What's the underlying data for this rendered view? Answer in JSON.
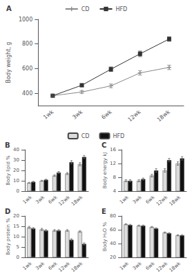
{
  "chart_data": [
    {
      "type": "line",
      "title": "A",
      "ylabel": "Body weight, g",
      "categories": [
        "1wk",
        "3wk",
        "6wk",
        "12wk",
        "18wk"
      ],
      "series": [
        {
          "name": "CD",
          "color": "#888888",
          "marker": "plus",
          "values": [
            380,
            410,
            460,
            565,
            610
          ],
          "errors": [
            8,
            12,
            15,
            18,
            18
          ]
        },
        {
          "name": "HFD",
          "color": "#333333",
          "marker": "square",
          "values": [
            380,
            465,
            595,
            720,
            840
          ],
          "errors": [
            8,
            12,
            18,
            22,
            18
          ]
        }
      ],
      "ylim": [
        300,
        1000
      ],
      "yticks": [
        400,
        600,
        800,
        1000
      ],
      "grid": false,
      "legend": "top"
    },
    {
      "type": "bar",
      "title": "B",
      "ylabel": "Body lipid %",
      "categories": [
        "1wk",
        "3wk",
        "6wk",
        "12wk",
        "18wk"
      ],
      "series": [
        {
          "name": "CD",
          "color": "#dcdcdc",
          "values": [
            8,
            10,
            15,
            17,
            26
          ],
          "errors": [
            0.5,
            0.5,
            0.8,
            1.0,
            1.5
          ]
        },
        {
          "name": "HFD",
          "color": "#111111",
          "values": [
            9,
            11,
            18,
            28,
            33
          ],
          "errors": [
            0.5,
            0.5,
            1.0,
            1.5,
            1.5
          ]
        }
      ],
      "ylim": [
        0,
        40
      ],
      "yticks": [
        0,
        10,
        20,
        30,
        40
      ],
      "grid": false,
      "legend": "top"
    },
    {
      "type": "bar",
      "title": "C",
      "ylabel": "Body energy kJ",
      "categories": [
        "1wk",
        "3wk",
        "6wk",
        "12wk",
        "18wk"
      ],
      "series": [
        {
          "name": "CD",
          "color": "#dcdcdc",
          "values": [
            7,
            7,
            8.5,
            10,
            12
          ],
          "errors": [
            0.3,
            0.3,
            0.4,
            0.5,
            0.5
          ]
        },
        {
          "name": "HFD",
          "color": "#111111",
          "values": [
            7,
            7.5,
            10,
            13,
            13.5
          ],
          "errors": [
            0.3,
            0.3,
            0.5,
            0.5,
            0.5
          ]
        }
      ],
      "ylim": [
        4,
        16
      ],
      "yticks": [
        4,
        8,
        12,
        16
      ],
      "grid": false
    },
    {
      "type": "bar",
      "title": "D",
      "ylabel": "Body protein %",
      "categories": [
        "1wk",
        "3wk",
        "6wk",
        "12wk",
        "18wk"
      ],
      "series": [
        {
          "name": "CD",
          "color": "#dcdcdc",
          "values": [
            14.5,
            13.5,
            13,
            13,
            12.5
          ],
          "errors": [
            0.5,
            0.5,
            0.4,
            0.4,
            0.4
          ]
        },
        {
          "name": "HFD",
          "color": "#111111",
          "values": [
            14,
            13,
            13,
            8.5,
            6.5
          ],
          "errors": [
            0.4,
            0.4,
            0.4,
            0.5,
            0.5
          ]
        }
      ],
      "ylim": [
        0,
        20
      ],
      "yticks": [
        0,
        5,
        10,
        15,
        20
      ],
      "grid": false
    },
    {
      "type": "bar",
      "title": "E",
      "ylabel": "Body H₂O %",
      "categories": [
        "1wk",
        "3wk",
        "6wk",
        "12wk",
        "18wk"
      ],
      "series": [
        {
          "name": "CD",
          "color": "#dcdcdc",
          "values": [
            68,
            66,
            64,
            56,
            52
          ],
          "errors": [
            0.8,
            0.8,
            0.8,
            0.8,
            0.8
          ]
        },
        {
          "name": "HFD",
          "color": "#111111",
          "values": [
            67,
            66,
            62,
            55,
            52
          ],
          "errors": [
            0.8,
            0.8,
            0.8,
            0.8,
            0.8
          ]
        }
      ],
      "ylim": [
        20,
        80
      ],
      "yticks": [
        20,
        40,
        60,
        80
      ],
      "grid": false
    }
  ]
}
